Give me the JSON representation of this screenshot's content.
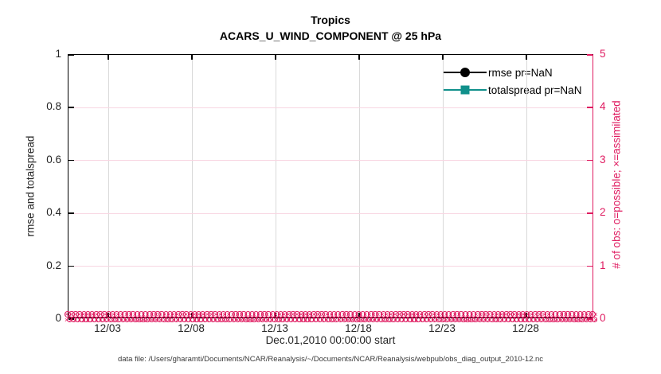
{
  "figure": {
    "footer_note": "data file: /Users/gharamti/Documents/NCAR/Reanalysis/~/Documents/NCAR/Reanalysis/webpub/obs_diag_output_2010-12.nc"
  },
  "colors": {
    "axis_black": "#000000",
    "obs_pink": "#df1b60",
    "teal": "#10908b",
    "grid_gray": "#d9d9d9",
    "grid_pink": "#f8d6e2",
    "tick_label_gray": "#262626"
  },
  "chart_data": {
    "type": "line",
    "title": "Tropics",
    "subtitle": "ACARS_U_WIND_COMPONENT @ 25 hPa",
    "xlabel": "Dec.01,2010 00:00:00 start",
    "x_tick_labels": [
      "12/03",
      "12/08",
      "12/13",
      "12/18",
      "12/23",
      "12/28"
    ],
    "x_range_note": "time axis spans Dec 01 2010 through Dec 31 2010",
    "left_axis": {
      "label": "rmse and totalspread",
      "ticks": [
        "0",
        "0.2",
        "0.4",
        "0.6",
        "0.8",
        "1"
      ],
      "lim": [
        0,
        1
      ],
      "color": "#000000"
    },
    "right_axis": {
      "label": "# of obs: o=possible; ×=assimilated",
      "ticks": [
        "0",
        "1",
        "2",
        "3",
        "4",
        "5"
      ],
      "lim": [
        0,
        5
      ],
      "color": "#df1b60"
    },
    "grid": true,
    "legend": {
      "position": "upper-right-inside",
      "entries": [
        {
          "label": "rmse pr=NaN",
          "color": "#000000",
          "marker": "filled-circle"
        },
        {
          "label": "totalspread pr=NaN",
          "color": "#10908b",
          "marker": "filled-square"
        }
      ]
    },
    "series": [
      {
        "name": "rmse pr=NaN",
        "axis": "left",
        "color": "#000000",
        "marker": "filled-circle",
        "values_note": "all NaN — no curve drawn"
      },
      {
        "name": "totalspread pr=NaN",
        "axis": "left",
        "color": "#10908b",
        "marker": "filled-square",
        "values_note": "all NaN — no curve drawn"
      },
      {
        "name": "possible observation count (o)",
        "axis": "right",
        "color": "#df1b60",
        "marker": "o",
        "constant_value": 0,
        "values_note": "dense o markers at y=0 for every time step across the whole month"
      },
      {
        "name": "assimilated observation count (×)",
        "axis": "right",
        "color": "#df1b60",
        "marker": "×",
        "constant_value": 0,
        "values_note": "dense × markers at y=0 for every time step across the whole month"
      }
    ]
  }
}
